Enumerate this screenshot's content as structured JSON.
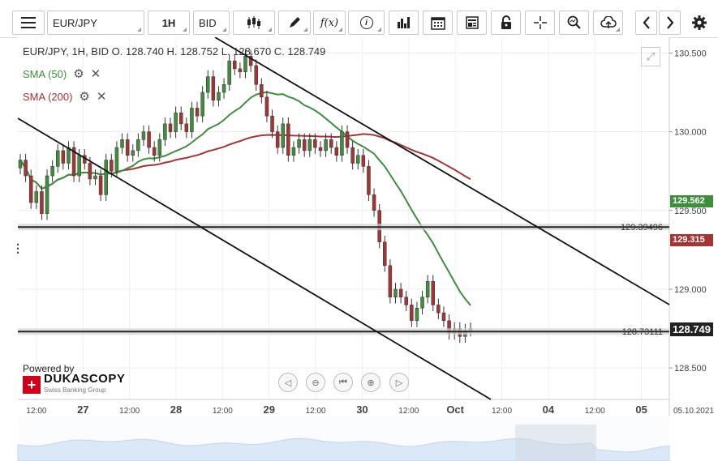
{
  "toolbar": {
    "symbol": "EUR/JPY",
    "period": "1H",
    "side": "BID",
    "icons": [
      "menu-icon",
      "candles-icon",
      "pencil-icon",
      "function-icon",
      "info-icon",
      "bar-chart-icon",
      "calendar-icon",
      "news-icon",
      "lock-icon",
      "crosshair-icon",
      "zoom-icon",
      "cloud-upload-icon",
      "chevron-left-icon",
      "chevron-right-icon",
      "gear-icon"
    ],
    "fx_label": "f(x)",
    "info_label": "i"
  },
  "legend": {
    "ohlc": "EUR/JPY, 1H, BID    O. 128.740 H. 128.752 L. 128.670 C. 128.749",
    "sma50": "SMA (50)",
    "sma200": "SMA (200)"
  },
  "colors": {
    "up": "#3e8e3e",
    "down": "#a33535",
    "sma50": "#3e8e3e",
    "sma200": "#a33535",
    "hline": "#888888",
    "last": "#222222"
  },
  "chart_data": {
    "type": "candlestick",
    "symbol": "EUR/JPY",
    "timeframe": "1H",
    "ylim": [
      128.3,
      130.6
    ],
    "y_ticks": [
      "130.500",
      "130.000",
      "129.500",
      "129.000",
      "128.500"
    ],
    "x_ticks": [
      "12:00",
      "27",
      "12:00",
      "28",
      "12:00",
      "29",
      "12:00",
      "30",
      "12:00",
      "Oct",
      "12:00",
      "04",
      "12:00",
      "05"
    ],
    "x_end_label": "05.10.2021",
    "horizontal_lines": [
      {
        "label": "129.39496",
        "value": 129.39496
      },
      {
        "label": "128.73111",
        "value": 128.73111
      }
    ],
    "price_tags": [
      {
        "label": "129.562",
        "value": 129.562,
        "color": "#3e8e3e"
      },
      {
        "label": "129.315",
        "value": 129.315,
        "color": "#a33535"
      },
      {
        "label": "128.749",
        "value": 128.749,
        "color": "#222222"
      }
    ],
    "closes": [
      129.82,
      129.72,
      129.55,
      129.62,
      129.48,
      129.72,
      129.78,
      129.88,
      129.8,
      129.9,
      129.72,
      129.85,
      129.8,
      129.7,
      129.72,
      129.6,
      129.82,
      129.75,
      129.9,
      129.95,
      129.85,
      129.88,
      129.95,
      130.0,
      129.9,
      129.85,
      129.95,
      130.05,
      130.0,
      130.12,
      130.05,
      130.0,
      130.15,
      130.1,
      130.25,
      130.35,
      130.2,
      130.25,
      130.3,
      130.45,
      130.4,
      130.38,
      130.48,
      130.42,
      130.3,
      130.22,
      130.1,
      130.0,
      129.9,
      130.05,
      129.85,
      129.9,
      129.95,
      129.88,
      129.95,
      129.9,
      129.88,
      129.95,
      129.9,
      129.85,
      130.0,
      129.9,
      129.8,
      129.85,
      129.78,
      129.6,
      129.5,
      129.3,
      129.15,
      128.95,
      129.0,
      128.95,
      128.9,
      128.8,
      128.88,
      128.95,
      129.05,
      128.9,
      128.85,
      128.8,
      128.72,
      128.75,
      128.7,
      128.74,
      128.749
    ]
  },
  "nav": {
    "buttons": [
      "nav-prev-icon",
      "zoom-out-icon",
      "reset-icon",
      "zoom-in-icon",
      "nav-next-icon"
    ]
  },
  "branding": {
    "powered_by": "Powered by",
    "name": "DUKASCOPY",
    "tagline": "Swiss Banking Group"
  }
}
